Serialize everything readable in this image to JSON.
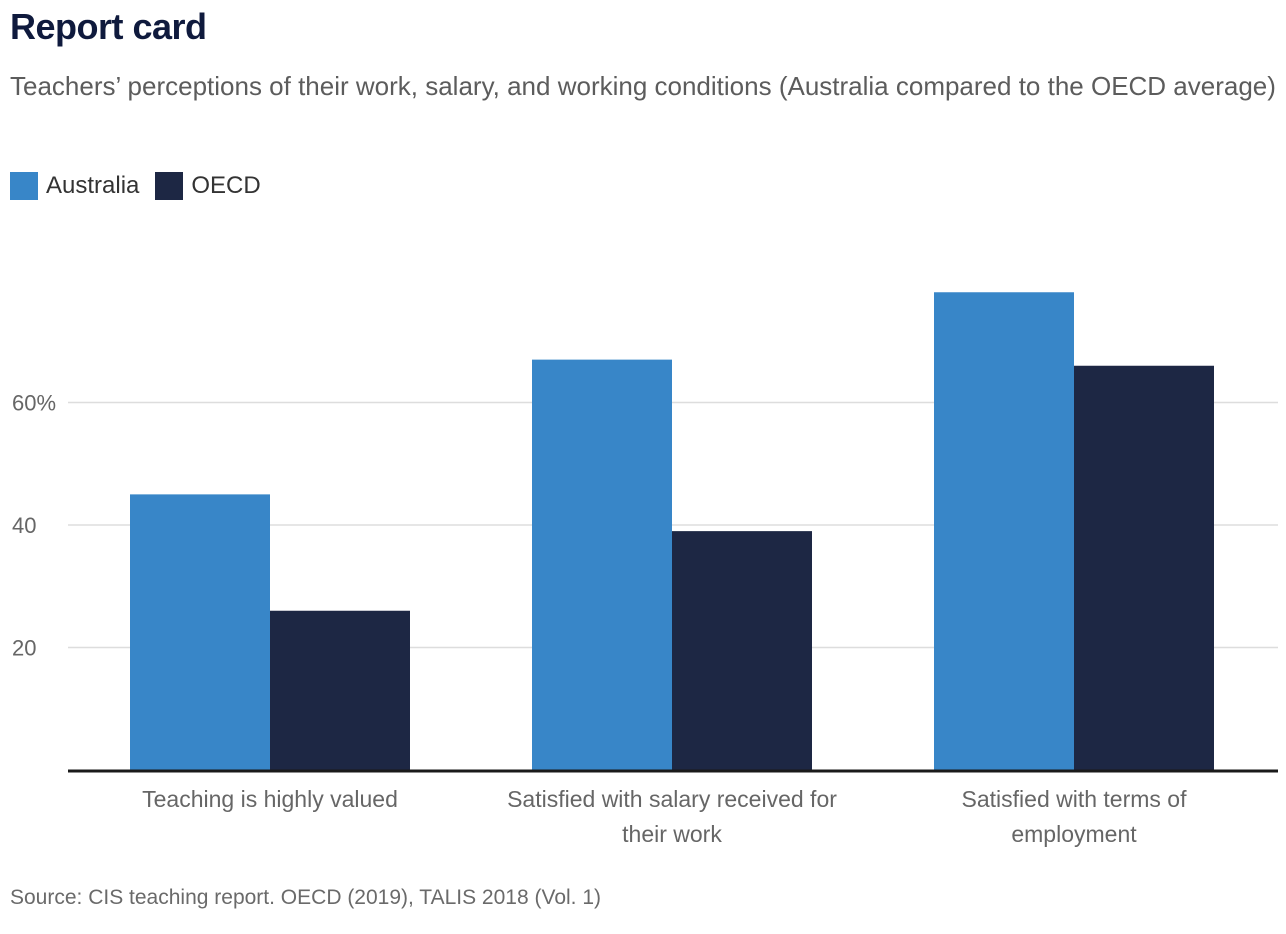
{
  "title": "Report card",
  "subtitle": "Teachers’ perceptions of their work, salary, and working conditions (Australia compared to the OECD average)",
  "source": "Source: CIS teaching report. OECD (2019), TALIS 2018 (Vol. 1)",
  "colors": {
    "australia": "#3886c8",
    "oecd": "#1d2744",
    "grid": "#dddddd",
    "axis": "#1a1a1a"
  },
  "chart_data": {
    "type": "bar",
    "categories": [
      [
        "Teaching is highly valued"
      ],
      [
        "Satisfied with salary received for",
        "their work"
      ],
      [
        "Satisfied with terms of",
        "employment"
      ]
    ],
    "series": [
      {
        "name": "Australia",
        "values": [
          45,
          67,
          78
        ]
      },
      {
        "name": "OECD",
        "values": [
          26,
          39,
          66
        ]
      }
    ],
    "yticks": [
      {
        "value": 20,
        "label": "20"
      },
      {
        "value": 40,
        "label": "40"
      },
      {
        "value": 60,
        "label": "60%"
      }
    ],
    "ylim": [
      0,
      80
    ],
    "grid": true,
    "legend_position": "top-left"
  }
}
